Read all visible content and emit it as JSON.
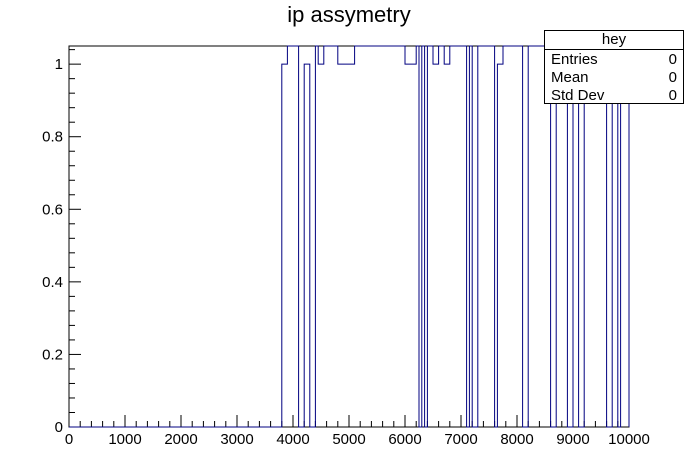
{
  "chart_data": {
    "type": "line",
    "title": "ip assymetry",
    "xlim": [
      0,
      10000
    ],
    "ylim": [
      0,
      1.05
    ],
    "x_ticks": [
      0,
      1000,
      2000,
      3000,
      4000,
      5000,
      6000,
      7000,
      8000,
      9000,
      10000
    ],
    "x_tick_labels": [
      "0",
      "1000",
      "2000",
      "3000",
      "4000",
      "5000",
      "6000",
      "7000",
      "8000",
      "9000",
      "10000"
    ],
    "y_ticks": [
      0,
      0.2,
      0.4,
      0.6,
      0.8,
      1
    ],
    "y_tick_labels": [
      "0",
      "0.2",
      "0.4",
      "0.6",
      "0.8",
      "1"
    ],
    "series": [
      {
        "color": "#000080",
        "points": [
          [
            0,
            0
          ],
          [
            3800,
            0
          ],
          [
            3800,
            1
          ],
          [
            3900,
            1
          ],
          [
            3900,
            1.05
          ],
          [
            4100,
            1.05
          ],
          [
            4100,
            0
          ],
          [
            4200,
            0
          ],
          [
            4200,
            1
          ],
          [
            4300,
            1
          ],
          [
            4300,
            0
          ],
          [
            4400,
            0
          ],
          [
            4400,
            1.05
          ],
          [
            4450,
            1.05
          ],
          [
            4450,
            1
          ],
          [
            4550,
            1
          ],
          [
            4550,
            1.05
          ],
          [
            4800,
            1.05
          ],
          [
            4800,
            1
          ],
          [
            5100,
            1
          ],
          [
            5100,
            1.05
          ],
          [
            6000,
            1.05
          ],
          [
            6000,
            1
          ],
          [
            6200,
            1
          ],
          [
            6200,
            1.05
          ],
          [
            6250,
            1.05
          ],
          [
            6250,
            0
          ],
          [
            6300,
            0
          ],
          [
            6300,
            1.05
          ],
          [
            6350,
            1.05
          ],
          [
            6350,
            0
          ],
          [
            6400,
            0
          ],
          [
            6400,
            1.05
          ],
          [
            6500,
            1.05
          ],
          [
            6500,
            1
          ],
          [
            6600,
            1
          ],
          [
            6600,
            1.05
          ],
          [
            6700,
            1.05
          ],
          [
            6700,
            1
          ],
          [
            6800,
            1
          ],
          [
            6800,
            1.05
          ],
          [
            7100,
            1.05
          ],
          [
            7100,
            0
          ],
          [
            7150,
            0
          ],
          [
            7150,
            1.05
          ],
          [
            7200,
            1.05
          ],
          [
            7200,
            0
          ],
          [
            7300,
            0
          ],
          [
            7300,
            1.05
          ],
          [
            7600,
            1.05
          ],
          [
            7600,
            0
          ],
          [
            7650,
            0
          ],
          [
            7650,
            1
          ],
          [
            7750,
            1
          ],
          [
            7750,
            1.05
          ],
          [
            8100,
            1.05
          ],
          [
            8100,
            0
          ],
          [
            8200,
            0
          ],
          [
            8200,
            1.05
          ],
          [
            8600,
            1.05
          ],
          [
            8600,
            0
          ],
          [
            8700,
            0
          ],
          [
            8700,
            1.05
          ],
          [
            8900,
            1.05
          ],
          [
            8900,
            0
          ],
          [
            9000,
            0
          ],
          [
            9000,
            1
          ],
          [
            9100,
            1
          ],
          [
            9100,
            0
          ],
          [
            9200,
            0
          ],
          [
            9200,
            1
          ],
          [
            9300,
            1
          ],
          [
            9300,
            1.05
          ],
          [
            9600,
            1.05
          ],
          [
            9600,
            0
          ],
          [
            9700,
            0
          ],
          [
            9700,
            1
          ],
          [
            9800,
            1
          ],
          [
            9800,
            0
          ],
          [
            9850,
            0
          ],
          [
            9850,
            1
          ],
          [
            10000,
            1
          ],
          [
            10000,
            0
          ]
        ]
      }
    ],
    "stats": {
      "name": "hey",
      "rows": [
        {
          "label": "Entries",
          "value": "0"
        },
        {
          "label": "Mean",
          "value": "0"
        },
        {
          "label": "Std Dev",
          "value": "0"
        }
      ]
    }
  }
}
